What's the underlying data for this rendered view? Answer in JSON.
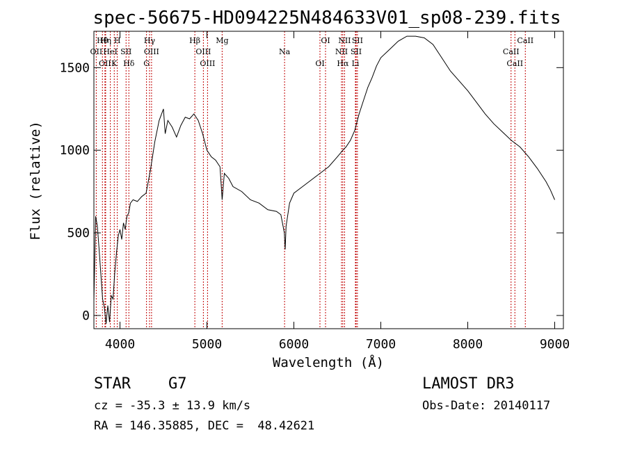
{
  "chart_data": {
    "type": "line",
    "title": "spec-56675-HD094225N484633V01_sp08-239.fits",
    "xlabel": "Wavelength (Å)",
    "ylabel": "Flux (relative)",
    "xlim": [
      3700,
      9100
    ],
    "ylim": [
      -80,
      1720
    ],
    "x_ticks": [
      4000,
      5000,
      6000,
      7000,
      8000,
      9000
    ],
    "x_tick_labels": [
      "4000",
      "5000",
      "6000",
      "7000",
      "8000",
      "9000"
    ],
    "y_ticks": [
      0,
      500,
      1000,
      1500
    ],
    "y_tick_labels": [
      "0",
      "500",
      "1000",
      "1500"
    ],
    "grid": false,
    "series": [
      {
        "name": "spectrum",
        "x": [
          3700,
          3720,
          3740,
          3760,
          3780,
          3800,
          3820,
          3840,
          3860,
          3880,
          3900,
          3920,
          3940,
          3960,
          3980,
          4000,
          4020,
          4040,
          4060,
          4080,
          4100,
          4120,
          4150,
          4200,
          4250,
          4300,
          4350,
          4400,
          4450,
          4500,
          4520,
          4550,
          4600,
          4650,
          4700,
          4750,
          4800,
          4850,
          4900,
          4950,
          5000,
          5050,
          5100,
          5150,
          5175,
          5200,
          5250,
          5300,
          5400,
          5500,
          5600,
          5700,
          5800,
          5850,
          5890,
          5900,
          5910,
          5950,
          6000,
          6100,
          6200,
          6300,
          6400,
          6500,
          6563,
          6600,
          6650,
          6700,
          6750,
          6800,
          6850,
          6900,
          6950,
          7000,
          7100,
          7200,
          7300,
          7400,
          7500,
          7600,
          7700,
          7800,
          7900,
          8000,
          8100,
          8200,
          8300,
          8400,
          8500,
          8600,
          8700,
          8800,
          8900,
          8950,
          9000
        ],
        "y": [
          90,
          600,
          540,
          400,
          250,
          100,
          50,
          -50,
          60,
          -40,
          120,
          100,
          260,
          380,
          480,
          520,
          460,
          560,
          520,
          600,
          620,
          680,
          700,
          690,
          720,
          740,
          880,
          1050,
          1180,
          1250,
          1100,
          1180,
          1140,
          1080,
          1150,
          1200,
          1190,
          1220,
          1180,
          1100,
          1000,
          960,
          940,
          900,
          700,
          860,
          830,
          780,
          750,
          700,
          680,
          640,
          630,
          610,
          500,
          400,
          540,
          680,
          740,
          780,
          820,
          860,
          900,
          960,
          1000,
          1020,
          1060,
          1120,
          1220,
          1300,
          1380,
          1440,
          1510,
          1560,
          1610,
          1660,
          1690,
          1690,
          1680,
          1640,
          1560,
          1480,
          1420,
          1360,
          1290,
          1220,
          1160,
          1110,
          1060,
          1020,
          960,
          890,
          810,
          760,
          700
        ]
      }
    ],
    "emission_lines": [
      {
        "name": "Hθ",
        "wavelength": 3798
      },
      {
        "name": "OII",
        "wavelength": 3727
      },
      {
        "name": "OII",
        "wavelength": 3827
      },
      {
        "name": "Hη",
        "wavelength": 3835
      },
      {
        "name": "HeI",
        "wavelength": 3889
      },
      {
        "name": "K",
        "wavelength": 3934
      },
      {
        "name": "H",
        "wavelength": 3969
      },
      {
        "name": "SII",
        "wavelength": 4070
      },
      {
        "name": "Hδ",
        "wavelength": 4102
      },
      {
        "name": "Hγ",
        "wavelength": 4340
      },
      {
        "name": "OIII",
        "wavelength": 4363
      },
      {
        "name": "G",
        "wavelength": 4305
      },
      {
        "name": "Hβ",
        "wavelength": 4861
      },
      {
        "name": "OIII",
        "wavelength": 4959
      },
      {
        "name": "OIII",
        "wavelength": 5007
      },
      {
        "name": "Mg",
        "wavelength": 5175
      },
      {
        "name": "Na",
        "wavelength": 5893
      },
      {
        "name": "OI",
        "wavelength": 6300
      },
      {
        "name": "OI",
        "wavelength": 6364
      },
      {
        "name": "NII",
        "wavelength": 6548
      },
      {
        "name": "Hα",
        "wavelength": 6563
      },
      {
        "name": "NII",
        "wavelength": 6583
      },
      {
        "name": "SII",
        "wavelength": 6716
      },
      {
        "name": "Li",
        "wavelength": 6708
      },
      {
        "name": "SII",
        "wavelength": 6731
      },
      {
        "name": "CaII",
        "wavelength": 8498
      },
      {
        "name": "CaII",
        "wavelength": 8542
      },
      {
        "name": "CaII",
        "wavelength": 8662
      }
    ]
  },
  "info": {
    "class": "STAR",
    "subclass": "G7",
    "survey": "LAMOST DR3",
    "cz": "cz = -35.3 ± 13.9 km/s",
    "obs_date": "Obs-Date: 20140117",
    "coords": "RA = 146.35885, DEC =  48.42621"
  }
}
